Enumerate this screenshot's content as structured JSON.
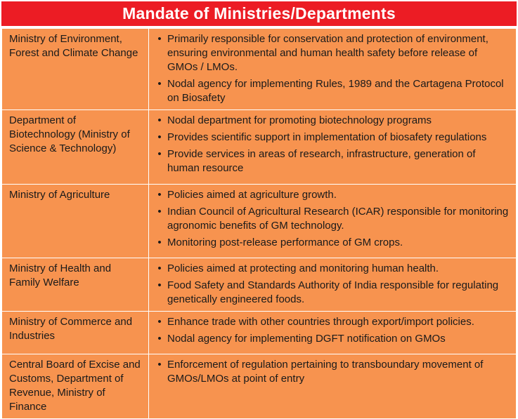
{
  "title": "Mandate of Ministries/Departments",
  "rows": [
    {
      "ministry": "Ministry of Environment, Forest and Climate Change",
      "duties": [
        "Primarily responsible for conservation and protection of environment, ensuring environmental and human health safety before release of GMOs / LMOs.",
        "Nodal agency for implementing Rules, 1989 and the Cartagena Protocol on Biosafety"
      ]
    },
    {
      "ministry": "Department of Biotechnology (Ministry of Science & Technology)",
      "duties": [
        "Nodal department for promoting biotechnology programs",
        "Provides scientific support in implementation of biosafety regulations",
        "Provide services in areas of research, infrastructure, generation of human resource"
      ]
    },
    {
      "ministry": "Ministry of Agriculture",
      "duties": [
        "Policies aimed at agriculture growth.",
        "Indian Council of Agricultural Research (ICAR) responsible for monitoring agronomic benefits of GM technology.",
        "Monitoring post-release performance of GM crops."
      ]
    },
    {
      "ministry": "Ministry of Health and Family Welfare",
      "duties": [
        "Policies aimed at protecting and monitoring human health.",
        "Food Safety and Standards Authority of India responsible for regulating genetically engineered foods."
      ]
    },
    {
      "ministry": "Ministry of Commerce and Industries",
      "duties": [
        "Enhance trade with other countries through export/import policies.",
        "Nodal agency for implementing DGFT notification on GMOs"
      ]
    },
    {
      "ministry": "Central Board of Excise and Customs, Department of Revenue, Ministry of Finance",
      "duties": [
        "Enforcement of regulation pertaining to transboundary movement of GMOs/LMOs  at point of entry"
      ]
    }
  ],
  "bullet_glyph": "•",
  "colors": {
    "title_bg": "#ec1c24",
    "table_bg": "#f7934f",
    "text": "#1a1a1a",
    "border": "#ffffff"
  }
}
